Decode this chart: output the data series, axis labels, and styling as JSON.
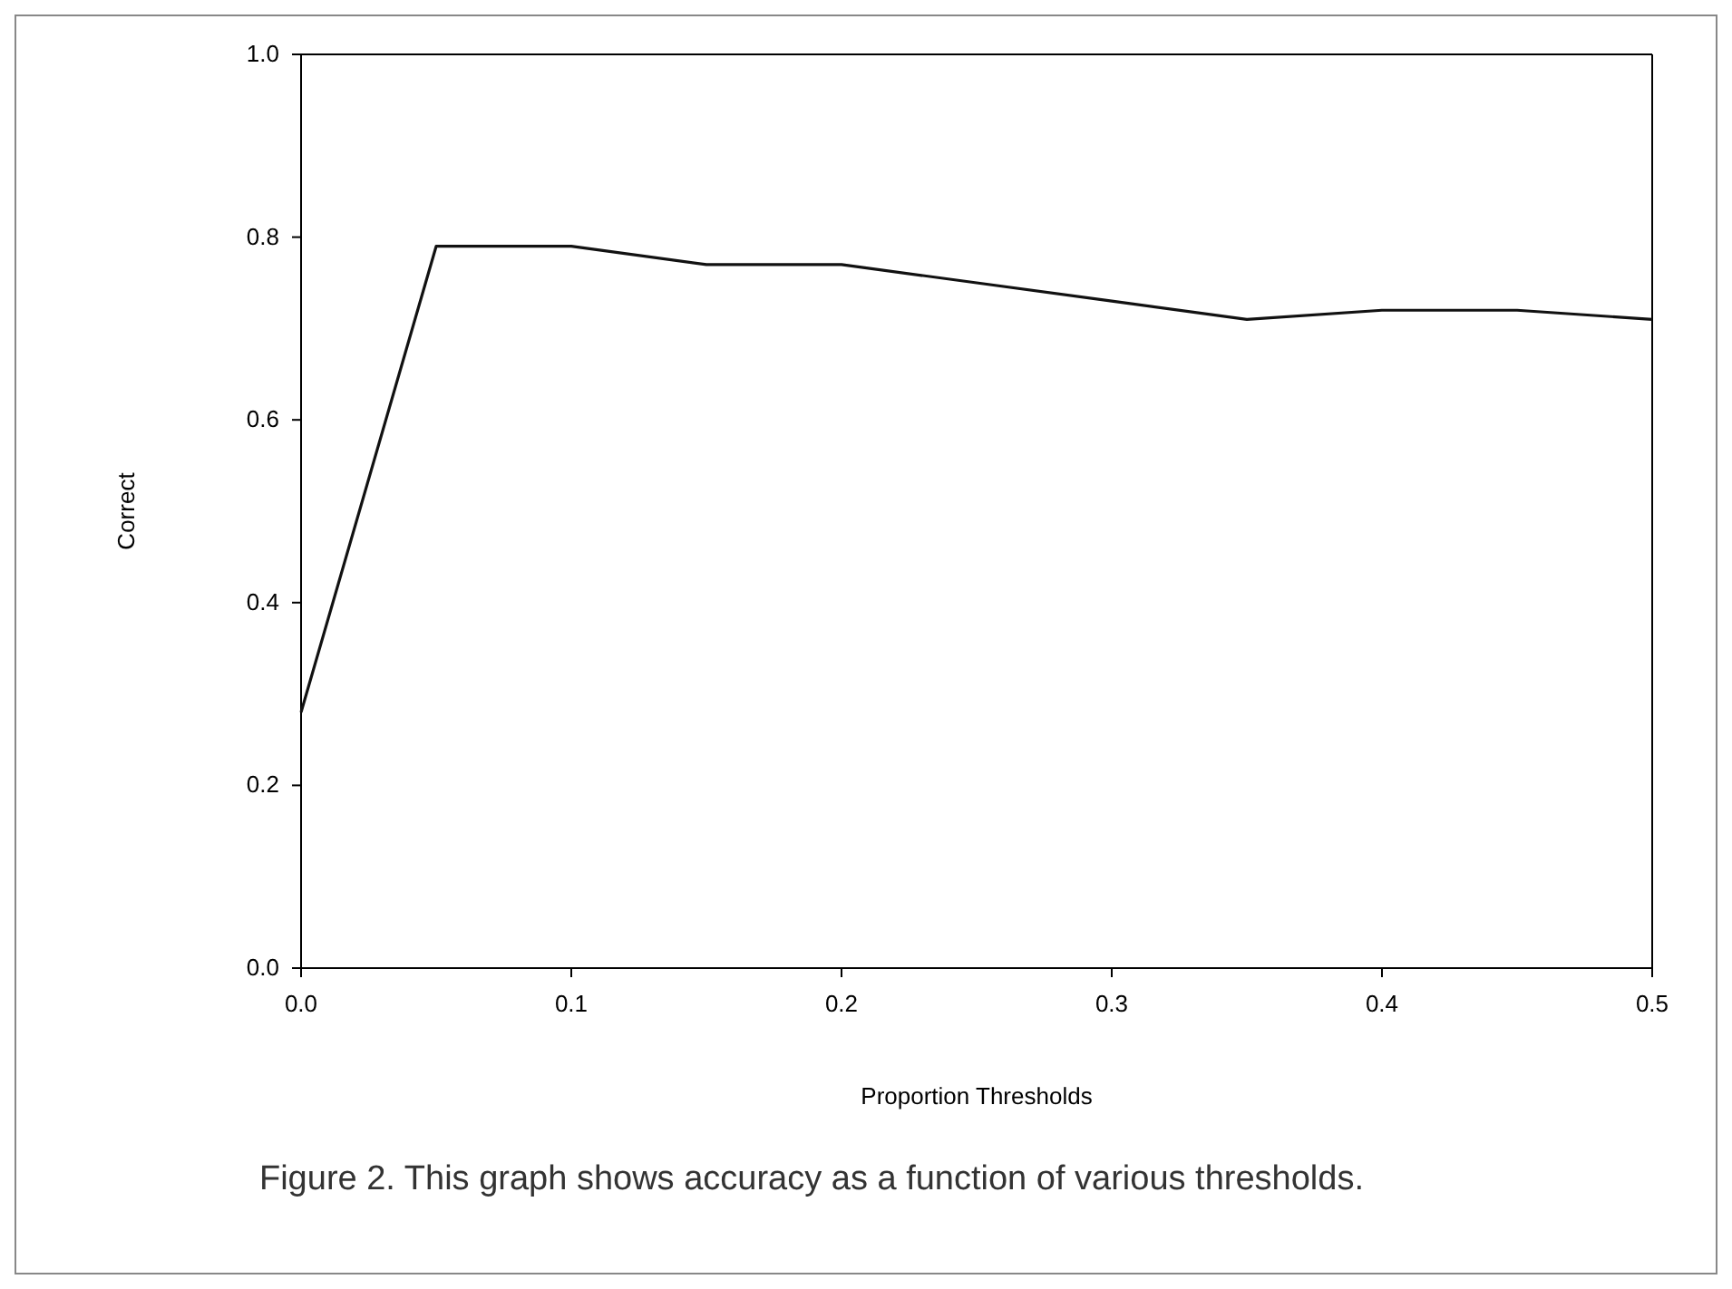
{
  "chart_data": {
    "type": "line",
    "xlabel": "Proportion Thresholds",
    "ylabel": "Correct",
    "x": [
      0,
      0.05,
      0.1,
      0.15,
      0.2,
      0.25,
      0.3,
      0.35,
      0.4,
      0.45,
      0.5
    ],
    "series": [
      {
        "color": "#111111",
        "values": [
          0.28,
          0.79,
          0.79,
          0.77,
          0.77,
          0.75,
          0.73,
          0.71,
          0.72,
          0.72,
          0.71
        ]
      }
    ],
    "xlim": [
      0,
      0.5
    ],
    "ylim": [
      0,
      1
    ],
    "xticks": [
      {
        "value": 0,
        "label": "0.0"
      },
      {
        "value": 0.1,
        "label": "0.1"
      },
      {
        "value": 0.2,
        "label": "0.2"
      },
      {
        "value": 0.3,
        "label": "0.3"
      },
      {
        "value": 0.4,
        "label": "0.4"
      },
      {
        "value": 0.5,
        "label": "0.5"
      }
    ],
    "yticks": [
      {
        "value": 0,
        "label": "0.0"
      },
      {
        "value": 0.2,
        "label": "0.2"
      },
      {
        "value": 0.4,
        "label": "0.4"
      },
      {
        "value": 0.6,
        "label": "0.6"
      },
      {
        "value": 0.8,
        "label": "0.8"
      },
      {
        "value": 1,
        "label": "1.0"
      }
    ],
    "grid": false,
    "marker": "none",
    "line_style": "solid",
    "annotations": [
      "Figure 2. This graph shows accuracy as a function of various thresholds."
    ]
  }
}
